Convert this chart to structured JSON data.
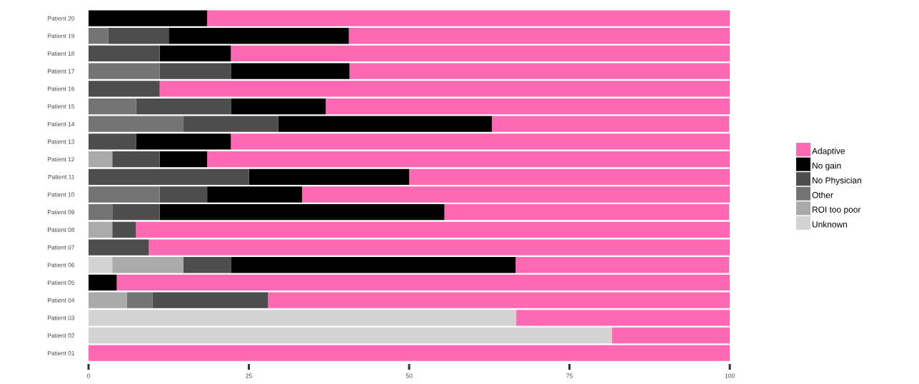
{
  "chart_data": {
    "type": "bar",
    "orientation": "horizontal",
    "stacked": true,
    "categories": [
      "Patient 20",
      "Patient 19",
      "Patient 18",
      "Patient 17",
      "Patient 16",
      "Patient 15",
      "Patient 14",
      "Patient 13",
      "Patient 12",
      "Patient 11",
      "Patient 10",
      "Patient 09",
      "Patient 08",
      "Patient 07",
      "Patient 06",
      "Patient 05",
      "Patient 04",
      "Patient 03",
      "Patient 02",
      "Patient 01"
    ],
    "series": [
      {
        "name": "Unknown",
        "color": "#d3d3d3",
        "values": [
          0,
          0,
          0,
          0,
          0,
          0,
          0,
          0,
          0,
          0,
          0,
          0,
          0,
          0,
          3.7,
          0,
          0,
          66.7,
          81.6,
          0
        ]
      },
      {
        "name": "ROI too poor",
        "color": "#aaaaaa",
        "values": [
          0,
          0,
          0,
          0,
          0,
          0,
          0,
          0,
          3.7,
          0,
          0,
          0,
          3.7,
          0,
          11.1,
          0,
          6.0,
          0,
          0,
          0
        ]
      },
      {
        "name": "Other",
        "color": "#747474",
        "values": [
          0,
          3.1,
          0,
          11.1,
          0,
          7.4,
          14.8,
          0,
          0,
          0,
          11.1,
          3.7,
          0,
          0,
          0,
          0,
          4.0,
          0,
          0,
          0
        ]
      },
      {
        "name": "No Physician",
        "color": "#4d4d4d",
        "values": [
          0,
          9.4,
          11.1,
          11.1,
          11.1,
          14.8,
          14.8,
          7.4,
          7.4,
          25.0,
          7.4,
          7.4,
          3.7,
          9.4,
          7.4,
          0,
          18.0,
          0,
          0,
          0
        ]
      },
      {
        "name": "No gain",
        "color": "#000000",
        "values": [
          18.5,
          28.1,
          11.1,
          18.5,
          0,
          14.8,
          33.3,
          14.8,
          7.4,
          25.0,
          14.8,
          44.4,
          0,
          0,
          44.4,
          4.4,
          0,
          0,
          0,
          0
        ]
      },
      {
        "name": "Adaptive",
        "color": "#ff69b4",
        "values": [
          81.5,
          59.4,
          77.8,
          59.3,
          88.9,
          63.0,
          37.0,
          77.8,
          81.5,
          50.0,
          66.7,
          44.4,
          92.6,
          90.6,
          33.3,
          95.6,
          72.0,
          33.3,
          18.4,
          100
        ]
      }
    ],
    "xlim": [
      0,
      100
    ],
    "xticks": [
      0,
      25,
      50,
      75,
      100
    ],
    "grid": false,
    "legend": "right"
  }
}
